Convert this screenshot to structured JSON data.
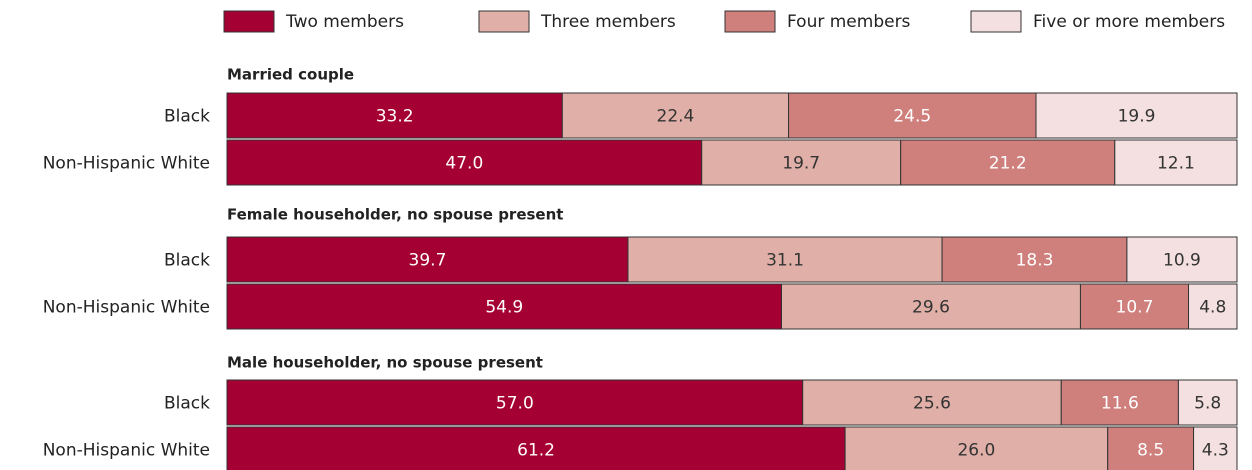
{
  "chart_data": {
    "type": "bar",
    "stacked": true,
    "orientation": "horizontal",
    "panels": [
      {
        "title": "Married couple",
        "categories": [
          "Black",
          "Non-Hispanic White"
        ]
      },
      {
        "title": "Female householder, no spouse present",
        "categories": [
          "Black",
          "Non-Hispanic White"
        ]
      },
      {
        "title": "Male householder, no spouse present",
        "categories": [
          "Black",
          "Non-Hispanic White"
        ]
      }
    ],
    "series": [
      {
        "name": "Two members",
        "color": "#a50034",
        "label_color": "#ffffff",
        "values": [
          [
            33.2,
            47.0
          ],
          [
            39.7,
            54.9
          ],
          [
            57.0,
            61.2
          ]
        ],
        "value_labels": [
          [
            "33.2",
            "47.0"
          ],
          [
            "39.7",
            "54.9"
          ],
          [
            "57.0",
            "61.2"
          ]
        ]
      },
      {
        "name": "Three members",
        "color": "#e0b0a8",
        "label_color": "#333333",
        "values": [
          [
            22.4,
            19.7
          ],
          [
            31.1,
            29.6
          ],
          [
            25.6,
            26.0
          ]
        ],
        "value_labels": [
          [
            "22.4",
            "19.7"
          ],
          [
            "31.1",
            "29.6"
          ],
          [
            "25.6",
            "26.0"
          ]
        ]
      },
      {
        "name": "Four members",
        "color": "#cf7f7c",
        "label_color": "#ffffff",
        "values": [
          [
            24.5,
            21.2
          ],
          [
            18.3,
            10.7
          ],
          [
            11.6,
            8.5
          ]
        ],
        "value_labels": [
          [
            "24.5",
            "21.2"
          ],
          [
            "18.3",
            "10.7"
          ],
          [
            "11.6",
            "8.5"
          ]
        ]
      },
      {
        "name": "Five or more members",
        "color": "#f4e0e0",
        "label_color": "#333333",
        "values": [
          [
            19.9,
            12.1
          ],
          [
            10.9,
            4.8
          ],
          [
            5.8,
            4.3
          ]
        ],
        "value_labels": [
          [
            "19.9",
            "12.1"
          ],
          [
            "10.9",
            "4.8"
          ],
          [
            "5.8",
            "4.3"
          ]
        ]
      }
    ]
  }
}
